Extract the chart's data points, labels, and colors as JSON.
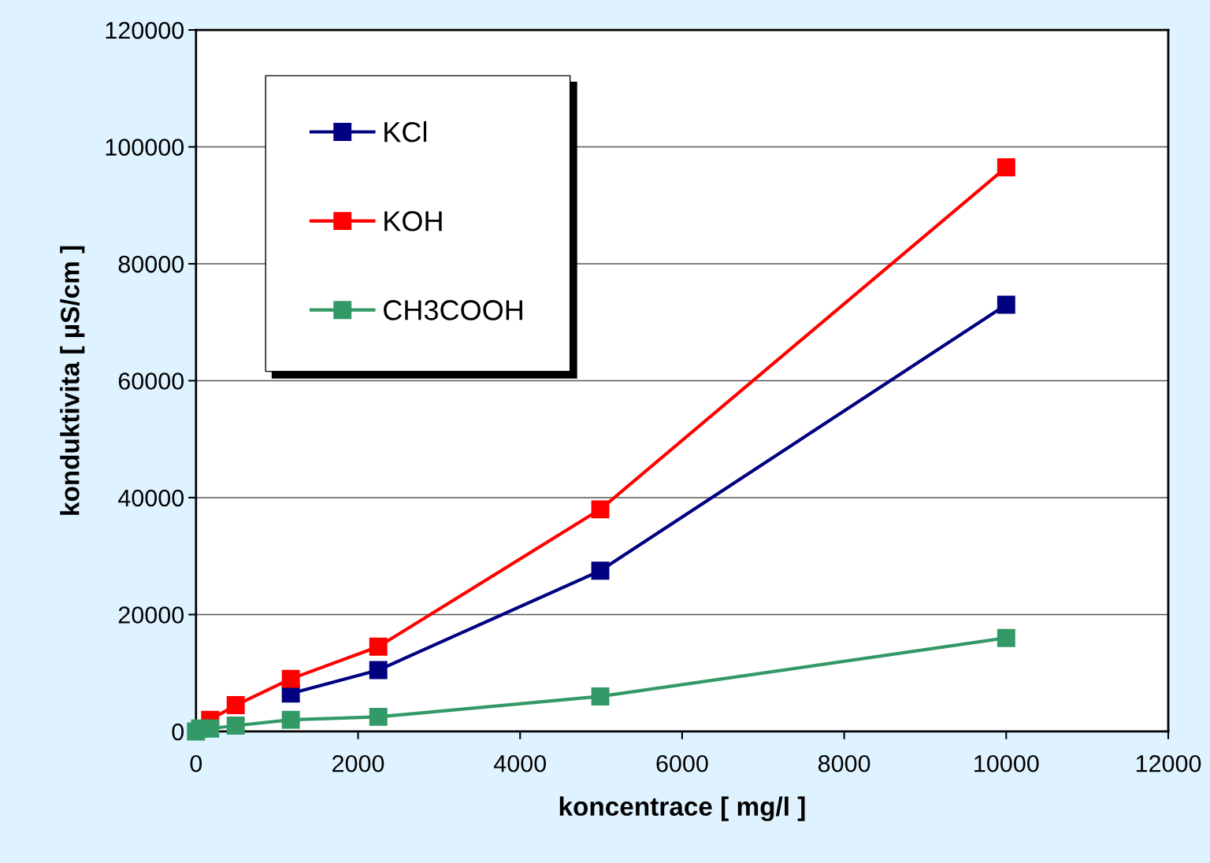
{
  "chart_data": {
    "type": "line",
    "xlabel": "koncentrace [ mg/l ]",
    "ylabel": "konduktivita [ µS/cm ]",
    "x": [
      0,
      50,
      175,
      490,
      1170,
      2250,
      4990,
      10000
    ],
    "series": [
      {
        "name": "KCl",
        "color": "#000080",
        "values": [
          null,
          null,
          null,
          null,
          6500,
          10500,
          27500,
          73000
        ]
      },
      {
        "name": "KOH",
        "color": "#ff0000",
        "values": [
          null,
          null,
          2000,
          4500,
          9000,
          14500,
          38000,
          96500
        ]
      },
      {
        "name": "CH3COOH",
        "color": "#339966",
        "values": [
          0,
          500,
          500,
          1000,
          2000,
          2500,
          6000,
          16000
        ]
      }
    ],
    "xlim": [
      0,
      12000
    ],
    "xticks": [
      0,
      2000,
      4000,
      6000,
      8000,
      10000,
      12000
    ],
    "ylim": [
      0,
      120000
    ],
    "yticks": [
      0,
      20000,
      40000,
      60000,
      80000,
      100000,
      120000
    ],
    "grid": "y",
    "legend": "top left",
    "marker": "square",
    "line_style": "solid"
  }
}
